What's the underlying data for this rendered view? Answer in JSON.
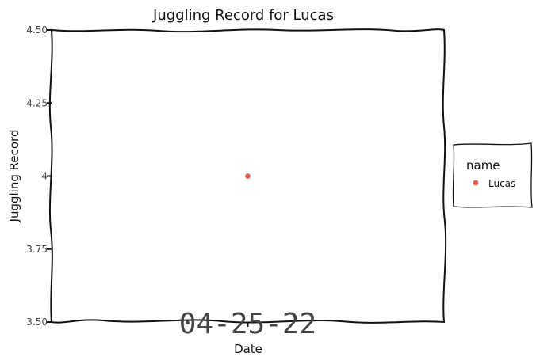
{
  "chart_data": {
    "type": "scatter",
    "title": "Juggling Record for Lucas",
    "xlabel": "Date",
    "ylabel": "Juggling Record",
    "x_ticks": [
      "04-25-22"
    ],
    "y_ticks": [
      "4.50",
      "4.25",
      "4",
      "3.75",
      "3.50"
    ],
    "ylim": [
      3.5,
      4.5
    ],
    "series": [
      {
        "name": "Lucas",
        "color": "#e05a4e",
        "points": [
          {
            "x": "04-25-22",
            "y": 4
          }
        ]
      }
    ],
    "legend": {
      "title": "name",
      "position": "right"
    },
    "grid": false
  }
}
